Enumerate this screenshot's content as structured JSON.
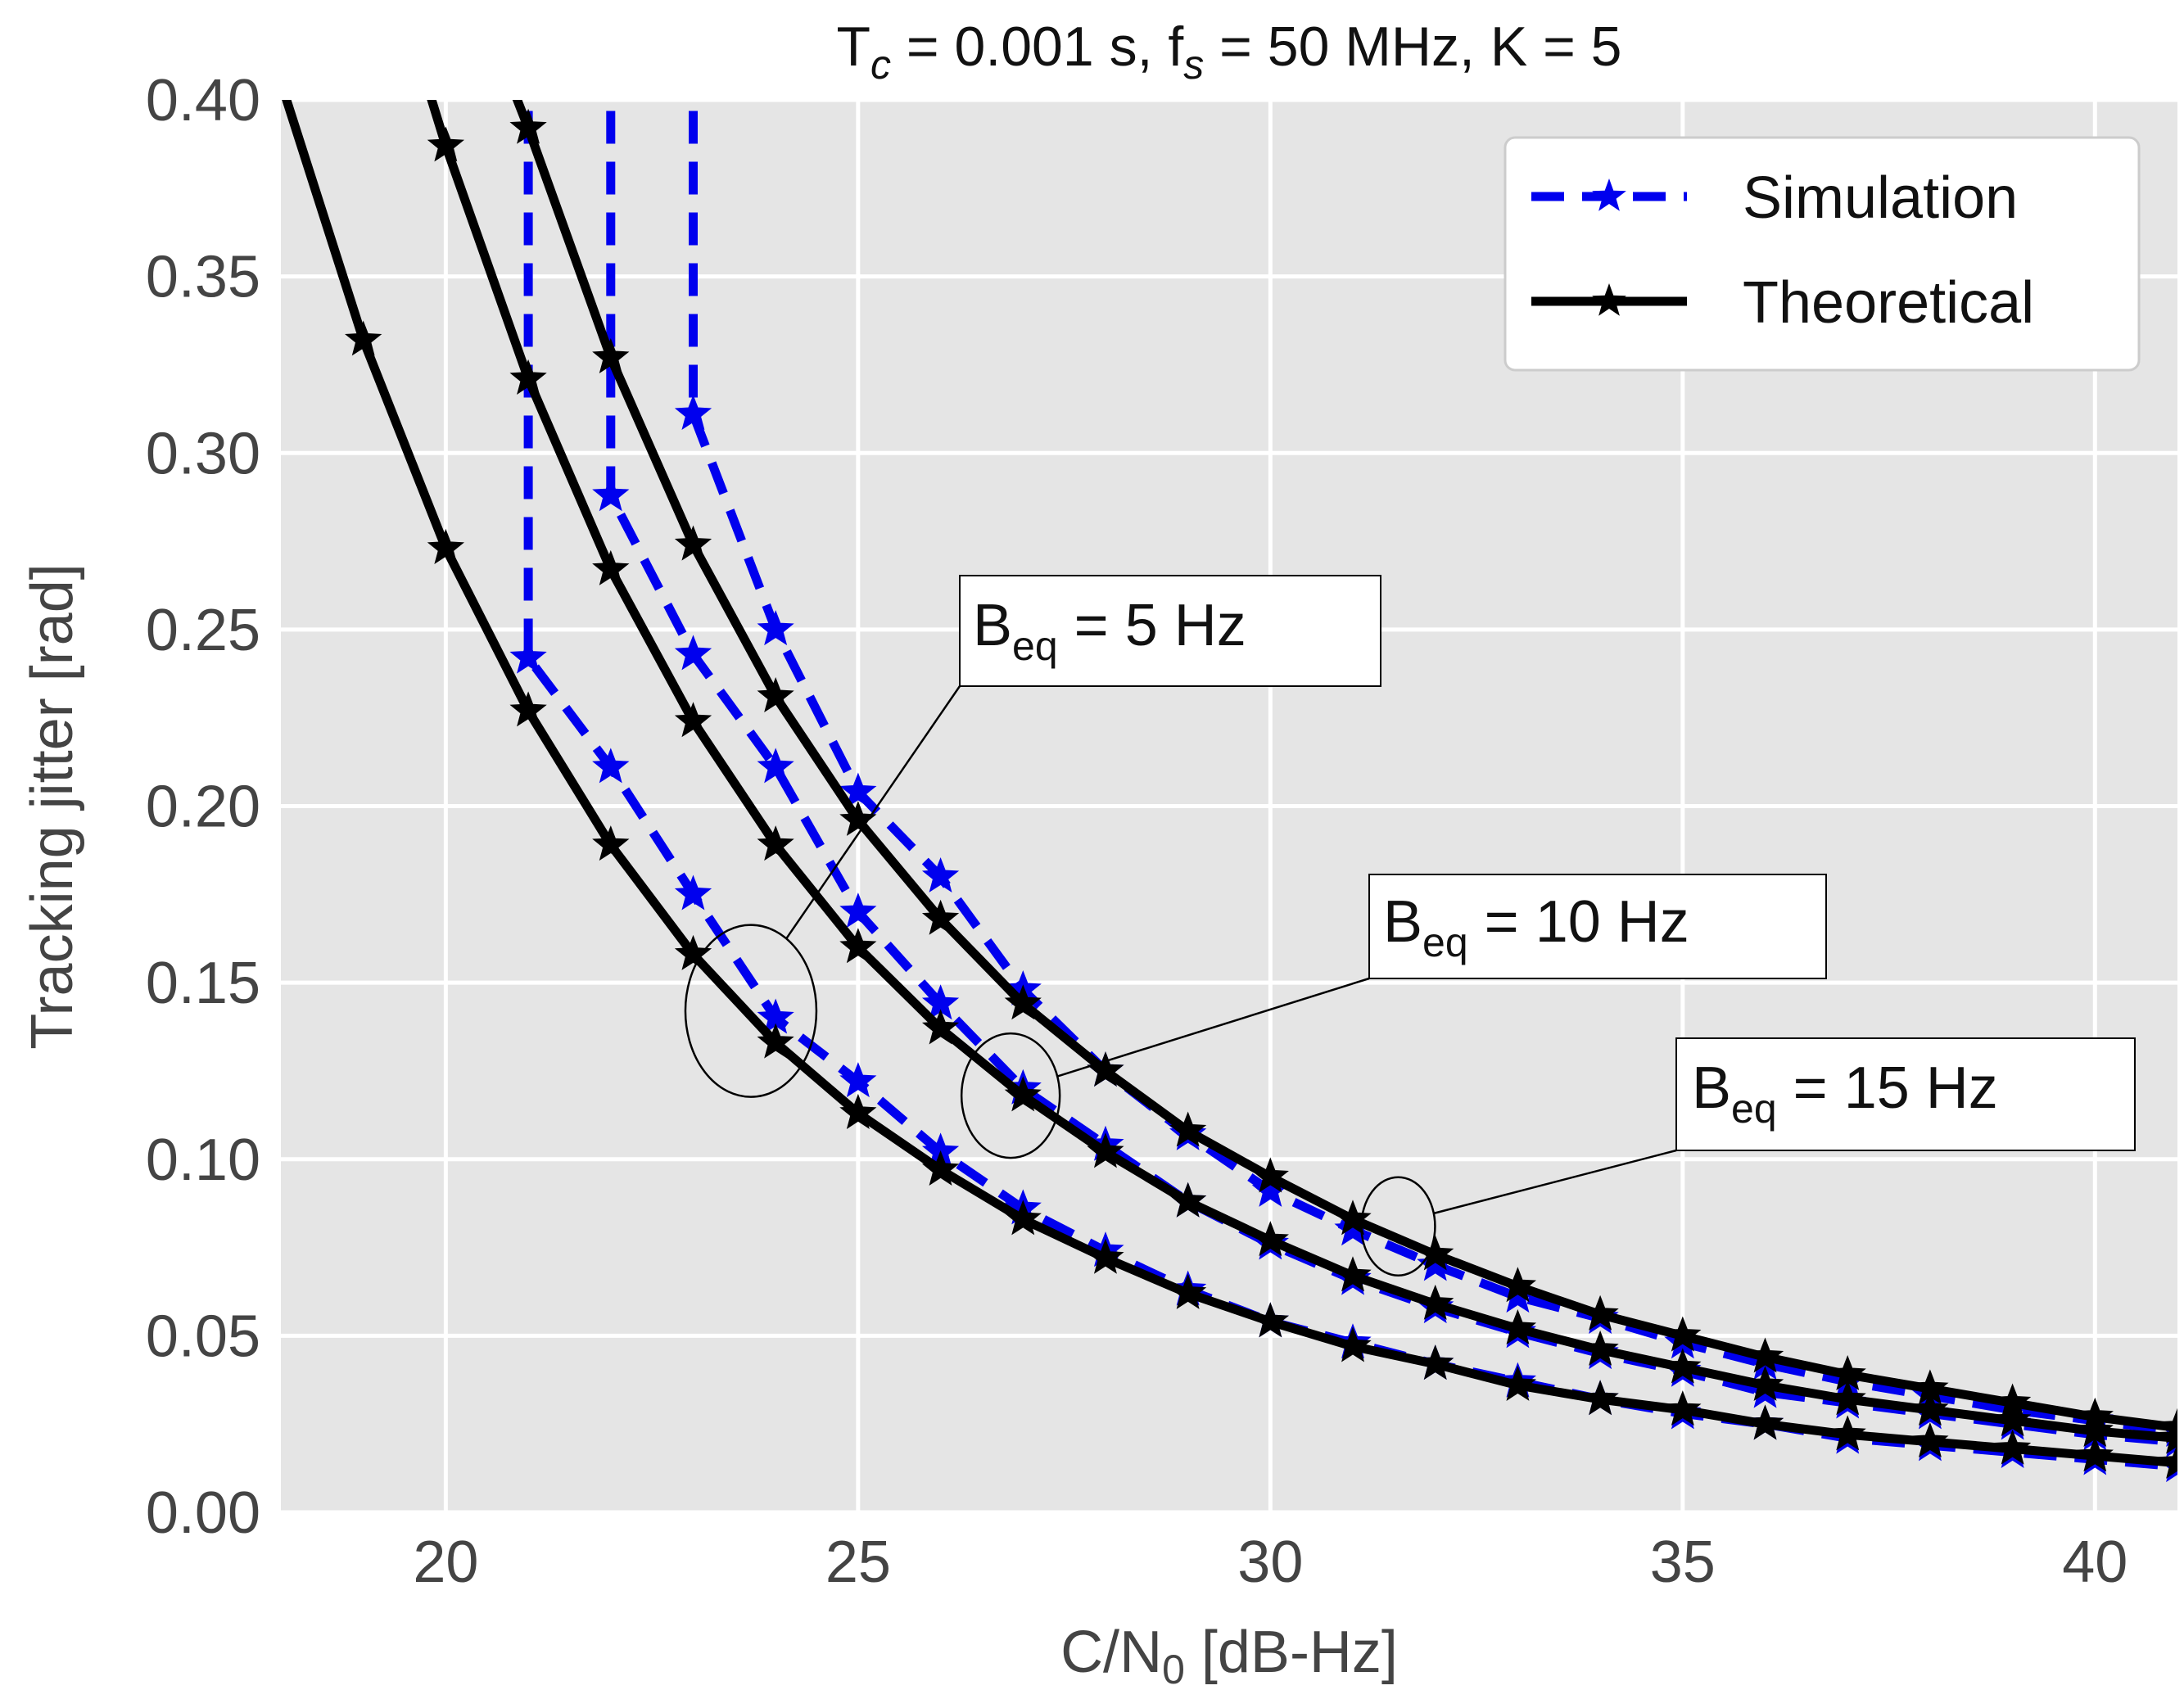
{
  "chart_data": {
    "type": "line",
    "title": {
      "main": "T",
      "sub_c": "c",
      "mid": " = 0.001 s, f",
      "sub_s": "s",
      "tail": " = 50 MHz, K = 5"
    },
    "xlabel": {
      "pre": "C/N",
      "sub": "0",
      "post": " [dB-Hz]"
    },
    "ylabel": "Tracking jitter [rad]",
    "xlim": [
      18,
      41
    ],
    "ylim": [
      0,
      0.4
    ],
    "xticks": [
      20,
      25,
      30,
      35,
      40
    ],
    "yticks": [
      0.0,
      0.05,
      0.1,
      0.15,
      0.2,
      0.25,
      0.3,
      0.35,
      0.4
    ],
    "ytick_labels": [
      "0.00",
      "0.05",
      "0.10",
      "0.15",
      "0.20",
      "0.25",
      "0.30",
      "0.35",
      "0.40"
    ],
    "grid": true,
    "background": "#e5e5e5",
    "legend": {
      "position": "top-right",
      "entries": [
        {
          "label": "Simulation",
          "color": "#0000ee",
          "style": "dashed"
        },
        {
          "label": "Theoretical",
          "color": "#000000",
          "style": "solid"
        }
      ]
    },
    "series": [
      {
        "name": "Theoretical B_eq = 5 Hz",
        "kind": "theory",
        "color": "#000000",
        "x": [
          17.7,
          18,
          19,
          20,
          21,
          22,
          23,
          24,
          25,
          26,
          27,
          28,
          29,
          30,
          31,
          32,
          33,
          34,
          35,
          36,
          37,
          38,
          39,
          40,
          41
        ],
        "y": [
          0.44,
          0.405,
          0.332,
          0.273,
          0.227,
          0.189,
          0.158,
          0.133,
          0.113,
          0.097,
          0.083,
          0.072,
          0.062,
          0.054,
          0.047,
          0.042,
          0.036,
          0.032,
          0.029,
          0.025,
          0.022,
          0.02,
          0.018,
          0.016,
          0.014
        ]
      },
      {
        "name": "Theoretical B_eq = 10 Hz",
        "kind": "theory",
        "color": "#000000",
        "x": [
          19.3,
          20,
          21,
          22,
          23,
          24,
          25,
          26,
          27,
          28,
          29,
          30,
          31,
          32,
          33,
          34,
          35,
          36,
          37,
          38,
          39,
          40,
          41
        ],
        "y": [
          0.44,
          0.387,
          0.321,
          0.267,
          0.224,
          0.189,
          0.16,
          0.137,
          0.118,
          0.102,
          0.088,
          0.077,
          0.067,
          0.059,
          0.052,
          0.046,
          0.041,
          0.036,
          0.032,
          0.029,
          0.026,
          0.023,
          0.021
        ]
      },
      {
        "name": "Theoretical B_eq = 15 Hz",
        "kind": "theory",
        "color": "#000000",
        "x": [
          20.2,
          21,
          22,
          23,
          24,
          25,
          26,
          27,
          28,
          29,
          30,
          31,
          32,
          33,
          34,
          35,
          36,
          37,
          38,
          39,
          40,
          41
        ],
        "y": [
          0.44,
          0.392,
          0.327,
          0.274,
          0.231,
          0.196,
          0.168,
          0.144,
          0.125,
          0.108,
          0.095,
          0.083,
          0.073,
          0.064,
          0.056,
          0.05,
          0.044,
          0.039,
          0.035,
          0.031,
          0.027,
          0.024
        ]
      },
      {
        "name": "Simulation B_eq = 5 Hz",
        "kind": "sim",
        "color": "#0000ee",
        "x": [
          21,
          21,
          22,
          23,
          24,
          25,
          26,
          27,
          28,
          29,
          30,
          31,
          32,
          33,
          34,
          35,
          36,
          37,
          38,
          39,
          40,
          41
        ],
        "y": [
          0.44,
          0.242,
          0.211,
          0.175,
          0.14,
          0.122,
          0.102,
          0.086,
          0.074,
          0.063,
          0.054,
          0.048,
          0.042,
          0.037,
          0.032,
          0.028,
          0.025,
          0.021,
          0.019,
          0.017,
          0.015,
          0.013
        ]
      },
      {
        "name": "Simulation B_eq = 10 Hz",
        "kind": "sim",
        "color": "#0000ee",
        "x": [
          22,
          22,
          23,
          24,
          25,
          26,
          27,
          28,
          29,
          30,
          31,
          32,
          33,
          34,
          35,
          36,
          37,
          38,
          39,
          40,
          41
        ],
        "y": [
          0.44,
          0.288,
          0.243,
          0.211,
          0.17,
          0.144,
          0.12,
          0.104,
          0.088,
          0.076,
          0.066,
          0.058,
          0.051,
          0.045,
          0.04,
          0.034,
          0.031,
          0.028,
          0.025,
          0.022,
          0.02
        ]
      },
      {
        "name": "Simulation B_eq = 15 Hz",
        "kind": "sim",
        "color": "#0000ee",
        "x": [
          23,
          23,
          24,
          25,
          26,
          27,
          28,
          29,
          30,
          31,
          32,
          33,
          34,
          35,
          36,
          37,
          38,
          39,
          40,
          41
        ],
        "y": [
          0.44,
          0.311,
          0.25,
          0.204,
          0.18,
          0.148,
          0.125,
          0.107,
          0.091,
          0.08,
          0.07,
          0.061,
          0.055,
          0.048,
          0.042,
          0.037,
          0.033,
          0.029,
          0.026,
          0.023
        ]
      }
    ],
    "annotations": [
      {
        "pre": "B",
        "sub": "eq",
        "post": " = 5 Hz",
        "ellipse_center": [
          23.7,
          0.142
        ]
      },
      {
        "pre": "B",
        "sub": "eq",
        "post": " = 10 Hz",
        "ellipse_center": [
          26.85,
          0.118
        ]
      },
      {
        "pre": "B",
        "sub": "eq",
        "post": " = 15 Hz",
        "ellipse_center": [
          31.55,
          0.081
        ]
      }
    ]
  }
}
